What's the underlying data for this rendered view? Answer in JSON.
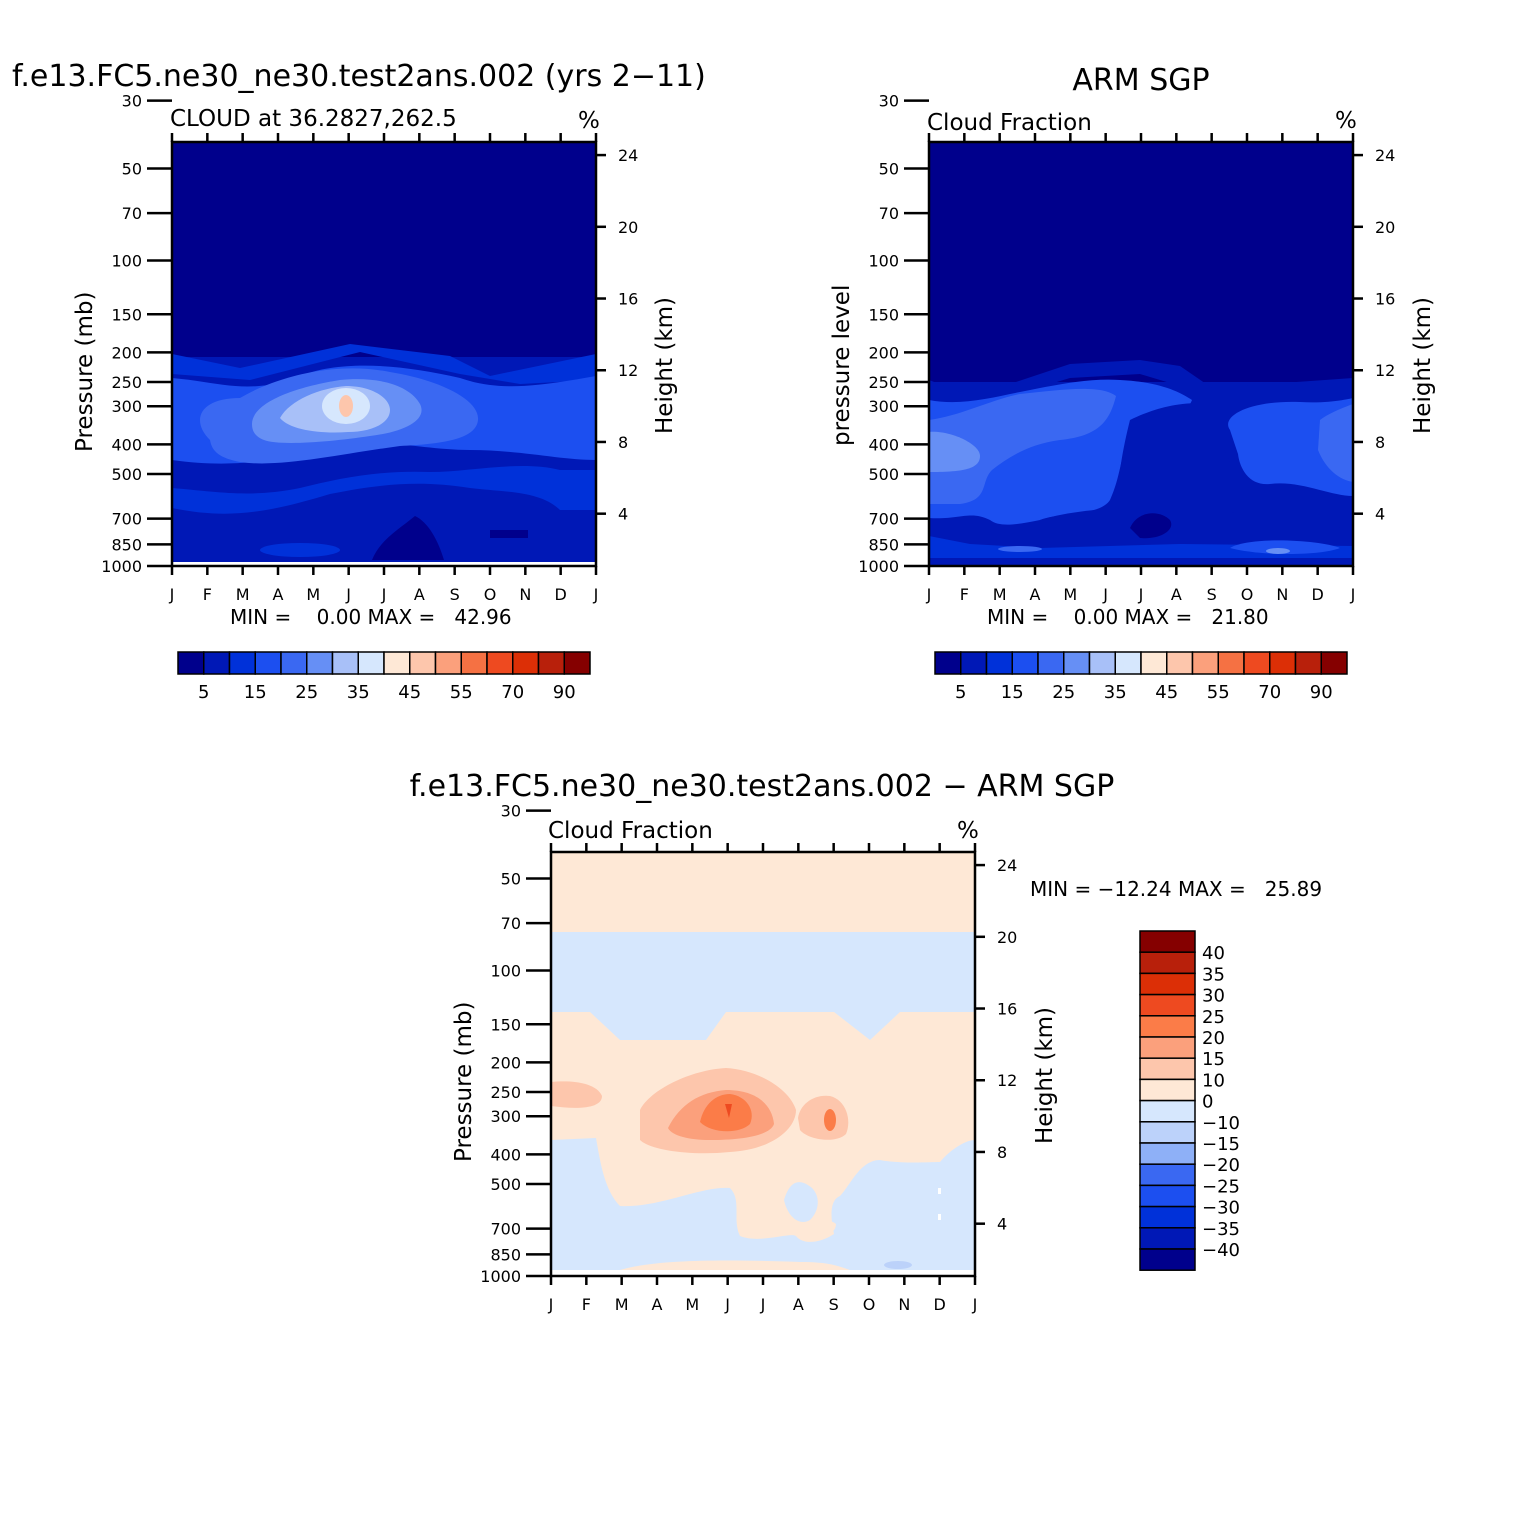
{
  "chart_data": [
    {
      "type": "heatmap",
      "title": "f.e13.FC5.ne30_ne30.test2ans.002 (yrs 2−11)",
      "subtitle": "CLOUD at 36.2827,262.5",
      "units": "%",
      "ylabel": "Pressure (mb)",
      "ylabel_right": "Height (km)",
      "x_ticks": [
        "J",
        "F",
        "M",
        "A",
        "M",
        "J",
        "J",
        "A",
        "S",
        "O",
        "N",
        "D",
        "J"
      ],
      "y_ticks": [
        30,
        50,
        70,
        100,
        150,
        200,
        250,
        300,
        400,
        500,
        700,
        850,
        1000
      ],
      "y_ticks_right": [
        24,
        20,
        16,
        12,
        8,
        4
      ],
      "ylim": [
        1000,
        22
      ],
      "y_scale": "log",
      "min_max_text": "MIN =    0.00 MAX =   42.96",
      "colorbar": {
        "orientation": "horizontal",
        "labels": [
          "5",
          "15",
          "25",
          "35",
          "45",
          "55",
          "70",
          "90"
        ],
        "colors": [
          "#00008c",
          "#0018b6",
          "#0031d9",
          "#1c4ff0",
          "#3a68f2",
          "#668ff5",
          "#a8c0f8",
          "#d6e7fd",
          "#fee8d6",
          "#fdc6ac",
          "#fba07c",
          "#f57143",
          "#ee4a20",
          "#dc2f06",
          "#b8200b",
          "#850000"
        ]
      },
      "max_region": {
        "month": 5.0,
        "pressure": 240,
        "value": 42.96
      }
    },
    {
      "type": "heatmap",
      "title": "ARM SGP",
      "subtitle": "Cloud Fraction",
      "units": "%",
      "ylabel": "pressure level",
      "ylabel_right": "Height (km)",
      "x_ticks": [
        "J",
        "F",
        "M",
        "A",
        "M",
        "J",
        "J",
        "A",
        "S",
        "O",
        "N",
        "D",
        "J"
      ],
      "y_ticks": [
        30,
        50,
        70,
        100,
        150,
        200,
        250,
        300,
        400,
        500,
        700,
        850,
        1000
      ],
      "y_ticks_right": [
        24,
        20,
        16,
        12,
        8,
        4
      ],
      "ylim": [
        1000,
        22
      ],
      "y_scale": "log",
      "min_max_text": "MIN =    0.00 MAX =   21.80",
      "colorbar": {
        "orientation": "horizontal",
        "labels": [
          "5",
          "15",
          "25",
          "35",
          "45",
          "55",
          "70",
          "90"
        ],
        "colors": [
          "#00008c",
          "#0018b6",
          "#0031d9",
          "#1c4ff0",
          "#3a68f2",
          "#668ff5",
          "#a8c0f8",
          "#d6e7fd",
          "#fee8d6",
          "#fdc6ac",
          "#fba07c",
          "#f57143",
          "#ee4a20",
          "#dc2f06",
          "#b8200b",
          "#850000"
        ]
      }
    },
    {
      "type": "heatmap",
      "title": "f.e13.FC5.ne30_ne30.test2ans.002 − ARM SGP",
      "subtitle": "Cloud Fraction",
      "units": "%",
      "ylabel": "Pressure (mb)",
      "ylabel_right": "Height (km)",
      "x_ticks": [
        "J",
        "F",
        "M",
        "A",
        "M",
        "J",
        "J",
        "A",
        "S",
        "O",
        "N",
        "D",
        "J"
      ],
      "y_ticks": [
        30,
        50,
        70,
        100,
        150,
        200,
        250,
        300,
        400,
        500,
        700,
        850,
        1000
      ],
      "y_ticks_right": [
        24,
        20,
        16,
        12,
        8,
        4
      ],
      "ylim": [
        1000,
        22
      ],
      "y_scale": "log",
      "min_max_text": "MIN = −12.24 MAX =   25.89",
      "colorbar": {
        "orientation": "vertical",
        "labels": [
          "40",
          "35",
          "30",
          "25",
          "20",
          "15",
          "10",
          "0",
          "−10",
          "−15",
          "−20",
          "−25",
          "−30",
          "−35",
          "−40"
        ],
        "colors": [
          "#850000",
          "#b8200b",
          "#dc2f06",
          "#ee4a20",
          "#fb7c48",
          "#fba07c",
          "#fdc6ac",
          "#fee8d6",
          "#d6e7fd",
          "#bcd2fa",
          "#8eb0f7",
          "#3a68f2",
          "#1c4ff0",
          "#0031d9",
          "#0018b6",
          "#00008c"
        ]
      },
      "max_region": {
        "month": 5.0,
        "pressure": 240,
        "value": 25.89
      }
    }
  ]
}
